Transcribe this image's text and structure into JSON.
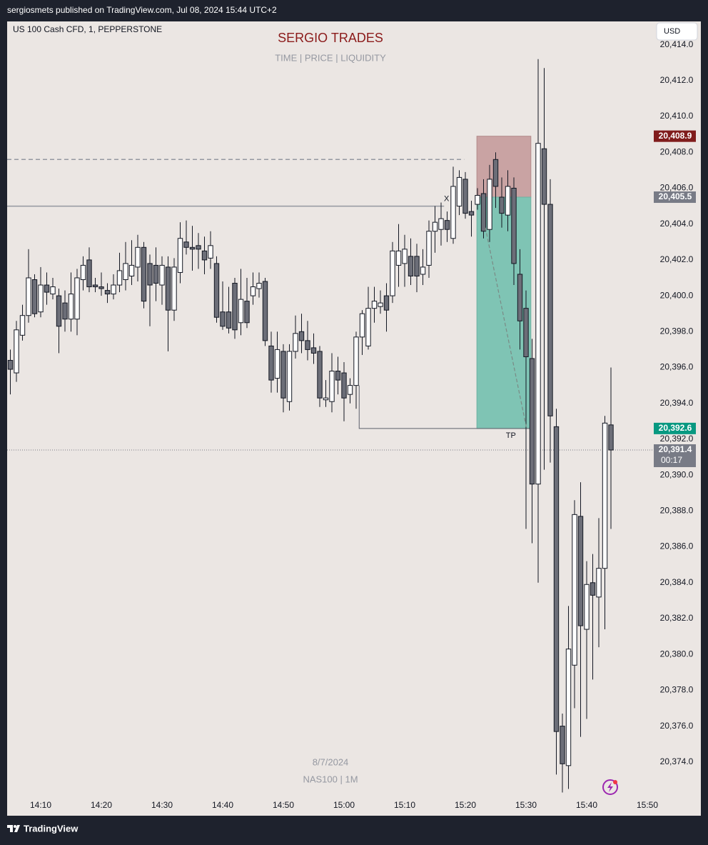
{
  "header": {
    "title": "sergiosmets published on TradingView.com, Jul 08, 2024 15:44 UTC+2"
  },
  "footer": {
    "brand": "TradingView"
  },
  "chart_data": {
    "type": "candlestick",
    "symbol": "US 100 Cash CFD, 1, PEPPERSTONE",
    "title": "SERGIO TRADES",
    "subtitle": "TIME |  PRICE |  LIQUIDITY",
    "watermark": [
      "8/7/2024",
      "NAS100 | 1M"
    ],
    "currency": "USD",
    "up_color": "#ffffff",
    "down_color": "#6c6e78",
    "open": [
      20396.4,
      20395.7,
      20397.8,
      20398.9,
      20400.9,
      20399.1,
      20400.6,
      20400.1,
      20400.0,
      20399.6,
      20398.7,
      20398.7,
      20400.9,
      20402.0,
      20400.6,
      20400.5,
      20400.3,
      20400.1,
      20400.6,
      20400.9,
      20401.1,
      20401.6,
      20402.7,
      20401.8,
      20401.7,
      20400.6,
      20401.6,
      20399.2,
      20401.3,
      20403.0,
      20402.7,
      20402.8,
      20402.5,
      20402.1,
      20401.8,
      20399.1,
      20399.1,
      20400.7,
      20398.5,
      20399.7,
      20400.0,
      20400.4,
      20400.8,
      20397.2,
      20395.4,
      20396.9,
      20394.1,
      20396.9,
      20398.0,
      20397.5,
      20397.1,
      20396.9,
      20394.2,
      20394.1,
      20395.8,
      20395.7,
      20394.5,
      20395.0,
      20397.7,
      20397.2,
      20399.3,
      20399.4,
      20400.0,
      20400.0,
      20401.7,
      20401.8,
      20402.2,
      20402.2,
      20401.2,
      20401.7,
      20403.6,
      20403.7,
      20404.2,
      20403.2,
      20405.0,
      20406.5,
      20404.7,
      20405.1,
      20405.7,
      20403.7,
      20407.6,
      20405.5,
      20404.5,
      20406.0,
      20401.2,
      20399.3,
      20396.5,
      20389.5,
      20408.2,
      20405.1,
      20392.7,
      20376.0,
      20373.8,
      20379.4,
      20387.7,
      20381.4,
      20384.0,
      20383.2,
      20384.8,
      20392.8
    ],
    "high": [
      20397.0,
      20398.6,
      20399.5,
      20402.6,
      20401.2,
      20401.6,
      20401.3,
      20401.0,
      20400.4,
      20400.3,
      20401.3,
      20401.5,
      20402.2,
      20402.7,
      20401.0,
      20401.3,
      20400.7,
      20401.2,
      20402.4,
      20403.0,
      20403.1,
      20403.4,
      20403.0,
      20402.3,
      20402.7,
      20402.2,
      20402.2,
      20402.1,
      20404.1,
      20404.2,
      20403.9,
      20403.5,
      20403.3,
      20403.6,
      20402.2,
      20400.8,
      20400.5,
      20401.0,
      20401.5,
      20401.0,
      20401.3,
      20401.3,
      20401.0,
      20398.0,
      20398.0,
      20397.3,
      20397.3,
      20398.9,
      20399.0,
      20398.6,
      20397.9,
      20397.2,
      20395.3,
      20396.8,
      20396.6,
      20396.3,
      20395.4,
      20398.0,
      20399.2,
      20400.5,
      20400.5,
      20400.3,
      20400.7,
      20403.0,
      20404.0,
      20403.4,
      20403.2,
      20402.9,
      20402.6,
      20404.2,
      20405.0,
      20405.2,
      20404.7,
      20407.2,
      20407.0,
      20406.9,
      20405.3,
      20406.0,
      20406.5,
      20407.3,
      20408.0,
      20406.6,
      20407.0,
      20406.6,
      20402.6,
      20400.3,
      20397.6,
      20413.2,
      20412.7,
      20406.5,
      20393.7,
      20376.7,
      20382.7,
      20388.6,
      20389.6,
      20385.2,
      20385.6,
      20387.6,
      20393.3,
      20396.0
    ],
    "low": [
      20394.5,
      20395.2,
      20397.5,
      20398.5,
      20398.8,
      20398.8,
      20399.5,
      20399.8,
      20396.8,
      20398.0,
      20398.0,
      20397.8,
      20400.3,
      20400.2,
      20400.2,
      20400.0,
      20399.6,
      20399.8,
      20400.2,
      20400.3,
      20400.6,
      20400.8,
      20399.3,
      20398.3,
      20399.7,
      20399.5,
      20396.9,
      20398.6,
      20400.7,
      20402.3,
      20401.4,
      20401.5,
      20401.2,
      20401.5,
      20398.5,
      20398.1,
      20397.9,
      20397.6,
      20397.8,
      20398.2,
      20399.5,
      20399.9,
      20397.2,
      20394.6,
      20394.6,
      20393.5,
      20393.6,
      20396.5,
      20396.8,
      20396.4,
      20396.2,
      20393.8,
      20393.8,
      20393.5,
      20394.5,
      20393.0,
      20394.0,
      20393.7,
      20396.7,
      20397.0,
      20398.5,
      20399.0,
      20398.0,
      20399.6,
      20400.5,
      20400.5,
      20400.6,
      20400.2,
      20400.6,
      20401.0,
      20402.4,
      20402.8,
      20403.0,
      20402.9,
      20404.5,
      20404.3,
      20403.3,
      20404.8,
      20403.2,
      20403.0,
      20404.9,
      20403.8,
      20403.6,
      20400.6,
      20397.0,
      20387.0,
      20386.2,
      20384.0,
      20390.3,
      20390.7,
      20373.3,
      20372.3,
      20372.5,
      20377.0,
      20375.4,
      20376.4,
      20378.6,
      20380.4,
      20381.4,
      20387.0
    ],
    "close": [
      20395.9,
      20398.1,
      20398.9,
      20401.0,
      20399.0,
      20400.6,
      20400.2,
      20400.5,
      20398.3,
      20398.7,
      20400.1,
      20401.0,
      20401.7,
      20400.5,
      20400.5,
      20400.4,
      20400.1,
      20400.6,
      20401.4,
      20401.8,
      20401.7,
      20402.7,
      20399.7,
      20400.6,
      20400.7,
      20401.7,
      20399.2,
      20401.6,
      20403.2,
      20402.7,
      20402.6,
      20402.6,
      20402.0,
      20402.8,
      20398.8,
      20398.3,
      20398.2,
      20398.1,
      20399.8,
      20398.5,
      20400.5,
      20400.7,
      20397.5,
      20395.3,
      20397.0,
      20394.3,
      20396.9,
      20397.9,
      20397.5,
      20397.0,
      20396.8,
      20394.3,
      20394.3,
      20395.8,
      20395.3,
      20394.3,
      20395.0,
      20397.7,
      20399.0,
      20399.3,
      20399.7,
      20399.6,
      20399.2,
      20402.5,
      20402.5,
      20402.6,
      20401.1,
      20401.1,
      20401.6,
      20403.6,
      20404.1,
      20404.3,
      20403.7,
      20406.1,
      20406.6,
      20404.6,
      20404.5,
      20405.6,
      20403.6,
      20406.5,
      20406.1,
      20404.6,
      20406.1,
      20401.8,
      20398.6,
      20396.6,
      20389.5,
      20408.5,
      20405.1,
      20393.3,
      20375.7,
      20373.9,
      20380.3,
      20387.8,
      20381.6,
      20383.9,
      20383.3,
      20384.8,
      20392.9,
      20391.4
    ],
    "xlim": [
      -0.53,
      105.94
    ],
    "ylim": [
      20372.2,
      20415.3
    ],
    "xticks": [
      {
        "value": 5,
        "label": "14:10"
      },
      {
        "value": 15,
        "label": "14:20"
      },
      {
        "value": 25,
        "label": "14:30"
      },
      {
        "value": 35,
        "label": "14:40"
      },
      {
        "value": 45,
        "label": "14:50"
      },
      {
        "value": 55,
        "label": "15:00"
      },
      {
        "value": 65,
        "label": "15:10"
      },
      {
        "value": 75,
        "label": "15:20"
      },
      {
        "value": 85,
        "label": "15:30"
      },
      {
        "value": 95,
        "label": "15:40"
      },
      {
        "value": 105,
        "label": "15:50"
      }
    ],
    "yticks": [
      {
        "value": 20414,
        "label": "20,414.0"
      },
      {
        "value": 20412,
        "label": "20,412.0"
      },
      {
        "value": 20410,
        "label": "20,410.0"
      },
      {
        "value": 20408,
        "label": "20,408.0"
      },
      {
        "value": 20406,
        "label": "20,406.0"
      },
      {
        "value": 20404,
        "label": "20,404.0"
      },
      {
        "value": 20402,
        "label": "20,402.0"
      },
      {
        "value": 20400,
        "label": "20,400.0"
      },
      {
        "value": 20398,
        "label": "20,398.0"
      },
      {
        "value": 20396,
        "label": "20,396.0"
      },
      {
        "value": 20394,
        "label": "20,394.0"
      },
      {
        "value": 20392,
        "label": "20,392.0"
      },
      {
        "value": 20390,
        "label": "20,390.0"
      },
      {
        "value": 20388,
        "label": "20,388.0"
      },
      {
        "value": 20386,
        "label": "20,386.0"
      },
      {
        "value": 20384,
        "label": "20,384.0"
      },
      {
        "value": 20382,
        "label": "20,382.0"
      },
      {
        "value": 20380,
        "label": "20,380.0"
      },
      {
        "value": 20378,
        "label": "20,378.0"
      },
      {
        "value": 20376,
        "label": "20,376.0"
      },
      {
        "value": 20374,
        "label": "20,374.0"
      }
    ],
    "price_labels": [
      {
        "value": 20408.9,
        "label": "20,408.9",
        "color": "#801c1c"
      },
      {
        "value": 20405.5,
        "label": "20,405.5",
        "color": "#787b86"
      },
      {
        "value": 20392.6,
        "label": "20,392.6",
        "color": "#089981"
      },
      {
        "value": 20391.4,
        "label": "20,391.4",
        "color": "#787b86",
        "countdown": "00:17",
        "dotted_line": true
      }
    ],
    "position": {
      "from": 76.9,
      "to": 85.8,
      "stop": 20408.9,
      "entry": 20405.5,
      "target": 20392.6,
      "stop_color": "#c9a3a3",
      "target_color": "#7fc4b4"
    },
    "levels": [
      {
        "value": 20405.0,
        "from": -0.53,
        "to": 71.5,
        "style": "solid"
      },
      {
        "value": 20407.6,
        "from": -0.53,
        "to": 74.8,
        "style": "dashed"
      }
    ],
    "tp_line": {
      "x": [
        57.5,
        57.5,
        85.8
      ],
      "y": [
        20395.0,
        20392.6,
        20392.6
      ]
    },
    "arrow": {
      "x": [
        78.3,
        85.1
      ],
      "y": [
        20403.8,
        20392.6
      ]
    },
    "annotations": [
      {
        "text": "X",
        "x": 71.9,
        "y": 20405.4
      },
      {
        "text": "TP",
        "x": 82.5,
        "y": 20392.2
      }
    ]
  }
}
